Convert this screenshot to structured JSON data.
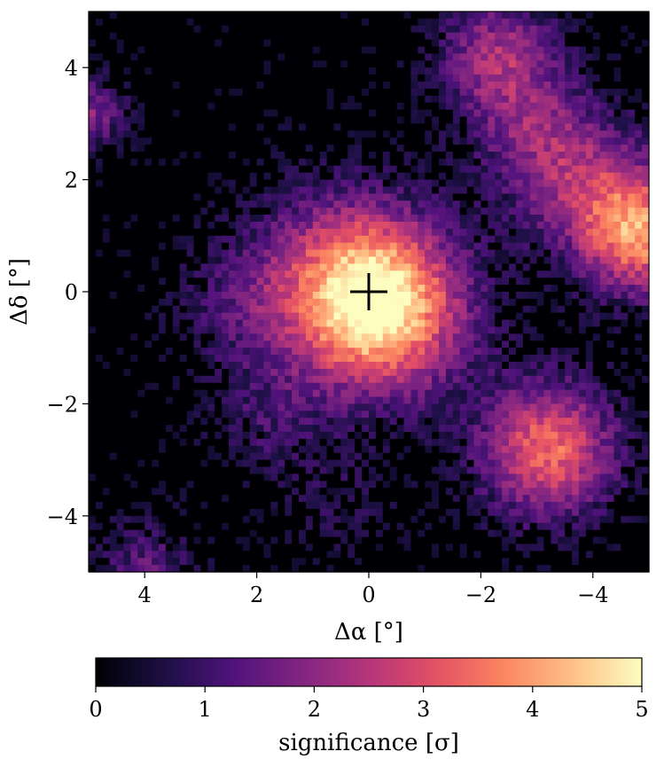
{
  "chart_data": {
    "type": "heatmap",
    "title": "",
    "xlabel": "Δα [°]",
    "ylabel": "Δδ [°]",
    "xlim": [
      5,
      -5
    ],
    "ylim": [
      -5,
      5
    ],
    "x_ticks": [
      4,
      2,
      0,
      -2,
      -4
    ],
    "y_ticks": [
      4,
      2,
      0,
      -2,
      -4
    ],
    "x_tick_labels": [
      "4",
      "2",
      "0",
      "−2",
      "−4"
    ],
    "y_tick_labels": [
      "4",
      "2",
      "0",
      "−2",
      "−4"
    ],
    "grid": false,
    "colormap": "magma",
    "colorbar": {
      "label": "significance [σ]",
      "orientation": "horizontal",
      "range": [
        0,
        5
      ],
      "ticks": [
        0,
        1,
        2,
        3,
        4,
        5
      ],
      "tick_labels": [
        "0",
        "1",
        "2",
        "3",
        "4",
        "5"
      ]
    },
    "marker": {
      "shape": "plus",
      "x": 0,
      "y": 0,
      "color": "#000000"
    },
    "blobs": [
      {
        "x": -0.2,
        "y": -0.3,
        "peak": 4.6,
        "sigma": 1.05
      },
      {
        "x": 0.6,
        "y": 0.4,
        "peak": 1.6,
        "sigma": 1.1
      },
      {
        "x": -3.2,
        "y": -2.8,
        "peak": 3.4,
        "sigma": 0.85
      },
      {
        "x": -4.9,
        "y": 1.0,
        "peak": 3.4,
        "sigma": 0.75
      },
      {
        "x": -4.0,
        "y": 1.8,
        "peak": 1.8,
        "sigma": 0.9
      },
      {
        "x": -2.3,
        "y": 4.2,
        "peak": 2.2,
        "sigma": 0.75
      },
      {
        "x": -3.0,
        "y": 2.8,
        "peak": 1.5,
        "sigma": 0.8
      },
      {
        "x": 5.0,
        "y": 3.2,
        "peak": 1.9,
        "sigma": 0.45
      },
      {
        "x": 2.3,
        "y": -0.3,
        "peak": 0.9,
        "sigma": 0.8
      },
      {
        "x": 1.8,
        "y": -2.3,
        "peak": 0.9,
        "sigma": 0.7
      },
      {
        "x": 4.0,
        "y": -4.9,
        "peak": 1.3,
        "sigma": 0.6
      },
      {
        "x": 0.5,
        "y": -3.8,
        "peak": 0.6,
        "sigma": 0.7
      }
    ],
    "colors": {
      "background": "#ffffff",
      "cmap_stops": [
        "#000004",
        "#1c1044",
        "#4f127b",
        "#812581",
        "#b5367a",
        "#e55064",
        "#fb8761",
        "#fec287",
        "#fcfdbf"
      ]
    }
  }
}
